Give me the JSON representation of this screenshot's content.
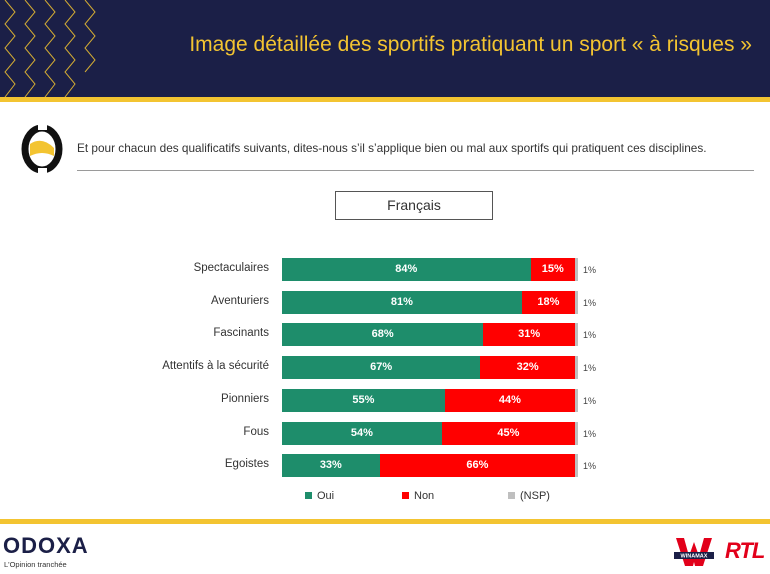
{
  "header": {
    "title": "Image détaillée des sportifs pratiquant un sport « à risques »"
  },
  "question": "Et pour chacun des qualificatifs suivants, dites-nous s’il s’applique bien ou mal aux sportifs qui pratiquent ces disciplines.",
  "segment": "Français",
  "legend": {
    "oui": "Oui",
    "non": "Non",
    "nsp": "(NSP)"
  },
  "footer": {
    "brand": "ODOXA",
    "tagline": "L'Opinion tranchée",
    "partner1": "WINAMAX",
    "partner2": "RTL"
  },
  "colors": {
    "oui": "#1e8d6b",
    "non": "#ff0000",
    "nsp": "#bfbfbf",
    "navy": "#1b1f47",
    "gold": "#f3c431"
  },
  "chart_data": {
    "type": "bar",
    "orientation": "horizontal",
    "stacked": true,
    "categories": [
      "Spectaculaires",
      "Aventuriers",
      "Fascinants",
      "Attentifs à la sécurité",
      "Pionniers",
      "Fous",
      "Egoistes"
    ],
    "series": [
      {
        "name": "Oui",
        "values": [
          84,
          81,
          68,
          67,
          55,
          54,
          33
        ],
        "labels": [
          "84%",
          "81%",
          "68%",
          "67%",
          "55%",
          "54%",
          "33%"
        ]
      },
      {
        "name": "Non",
        "values": [
          15,
          18,
          31,
          32,
          44,
          45,
          66
        ],
        "labels": [
          "15%",
          "18%",
          "31%",
          "32%",
          "44%",
          "45%",
          "66%"
        ]
      },
      {
        "name": "(NSP)",
        "values": [
          1,
          1,
          1,
          1,
          1,
          1,
          1
        ],
        "labels": [
          "1%",
          "1%",
          "1%",
          "1%",
          "1%",
          "1%",
          "1%"
        ]
      }
    ],
    "xlim": [
      0,
      100
    ],
    "legend_position": "bottom"
  }
}
